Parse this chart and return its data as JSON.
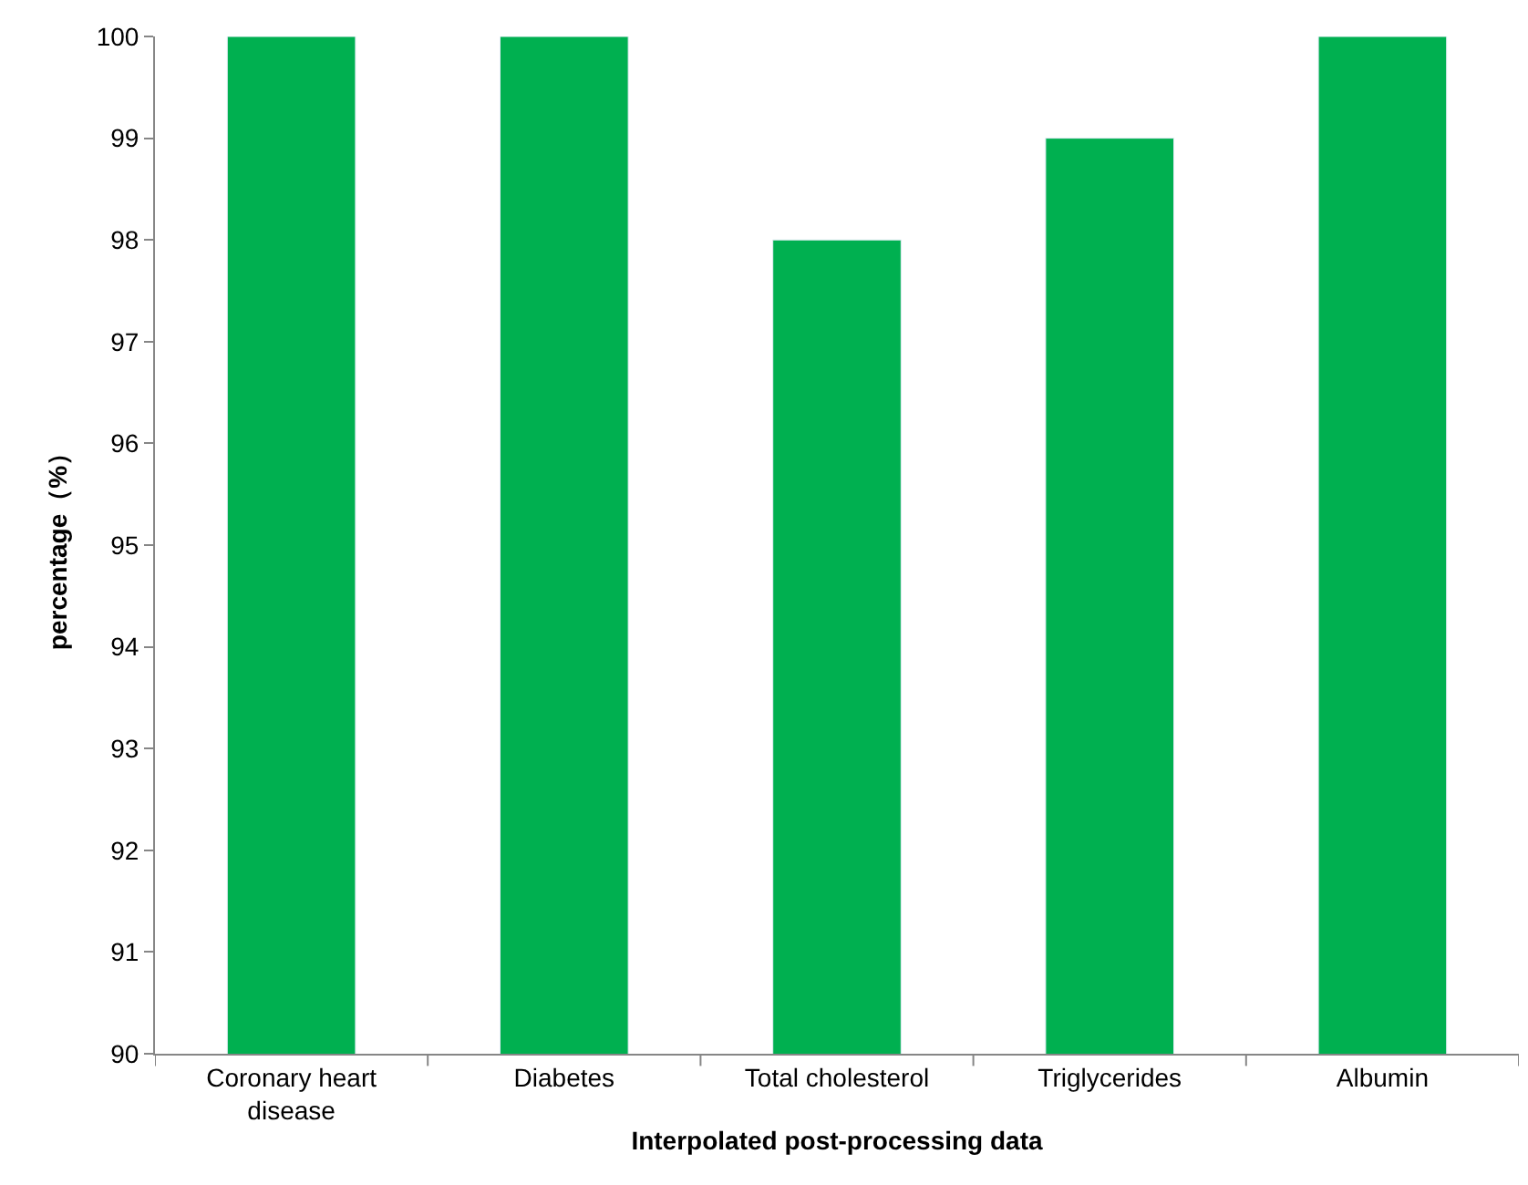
{
  "chart_data": {
    "type": "bar",
    "xlabel": "Interpolated post-processing data",
    "ylabel": "percentage（%）",
    "categories": [
      "Coronary heart disease",
      "Diabetes",
      "Total cholesterol",
      "Triglycerides",
      "Albumin"
    ],
    "values": [
      100,
      100,
      98,
      99,
      100
    ],
    "color": "#00b050",
    "ylim": [
      90,
      100
    ],
    "yticks": [
      90,
      91,
      92,
      93,
      94,
      95,
      96,
      97,
      98,
      99,
      100
    ],
    "legend": false
  }
}
